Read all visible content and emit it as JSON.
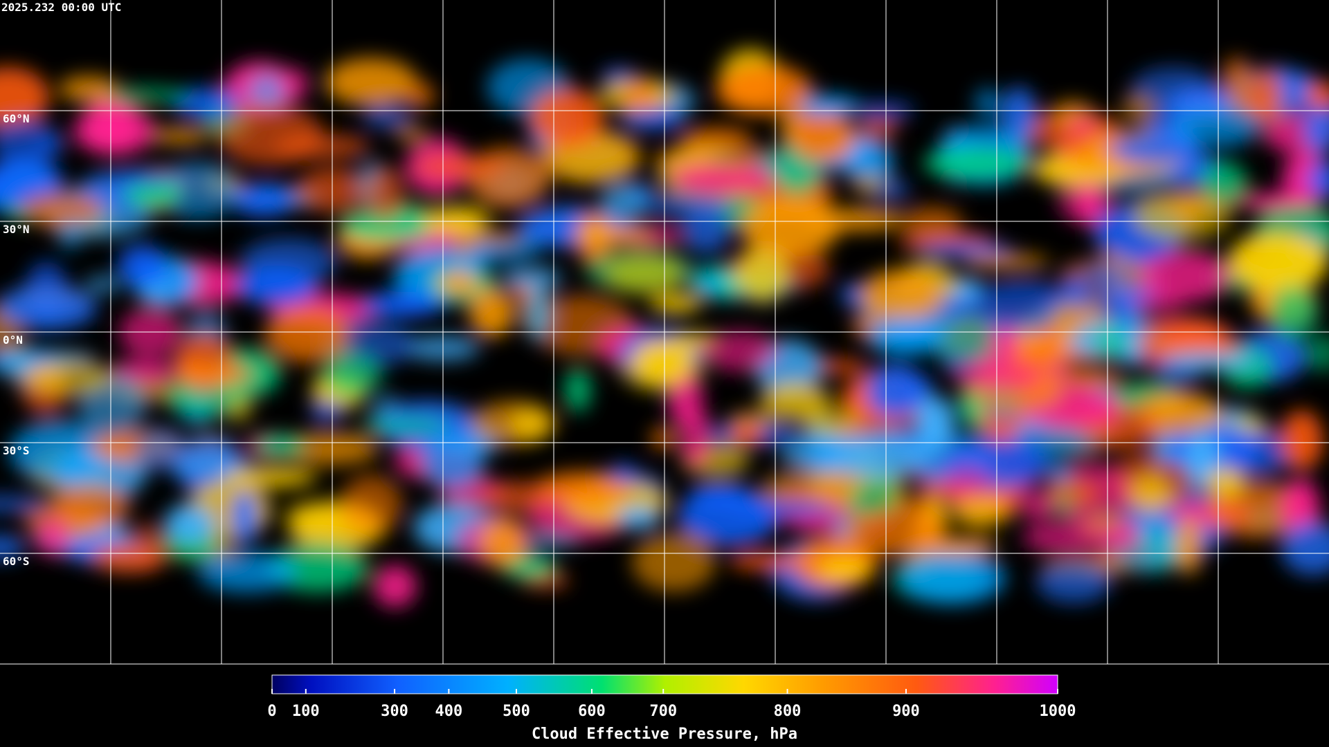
{
  "header": {
    "timestamp": "2025.232 00:00 UTC"
  },
  "map": {
    "latitude_labels": [
      "60°N",
      "30°N",
      "0°N",
      "30°S",
      "60°S"
    ]
  },
  "colorbar": {
    "label": "Cloud Effective Pressure, hPa",
    "ticks": [
      0,
      100,
      300,
      400,
      500,
      600,
      700,
      800,
      900,
      1000
    ]
  }
}
